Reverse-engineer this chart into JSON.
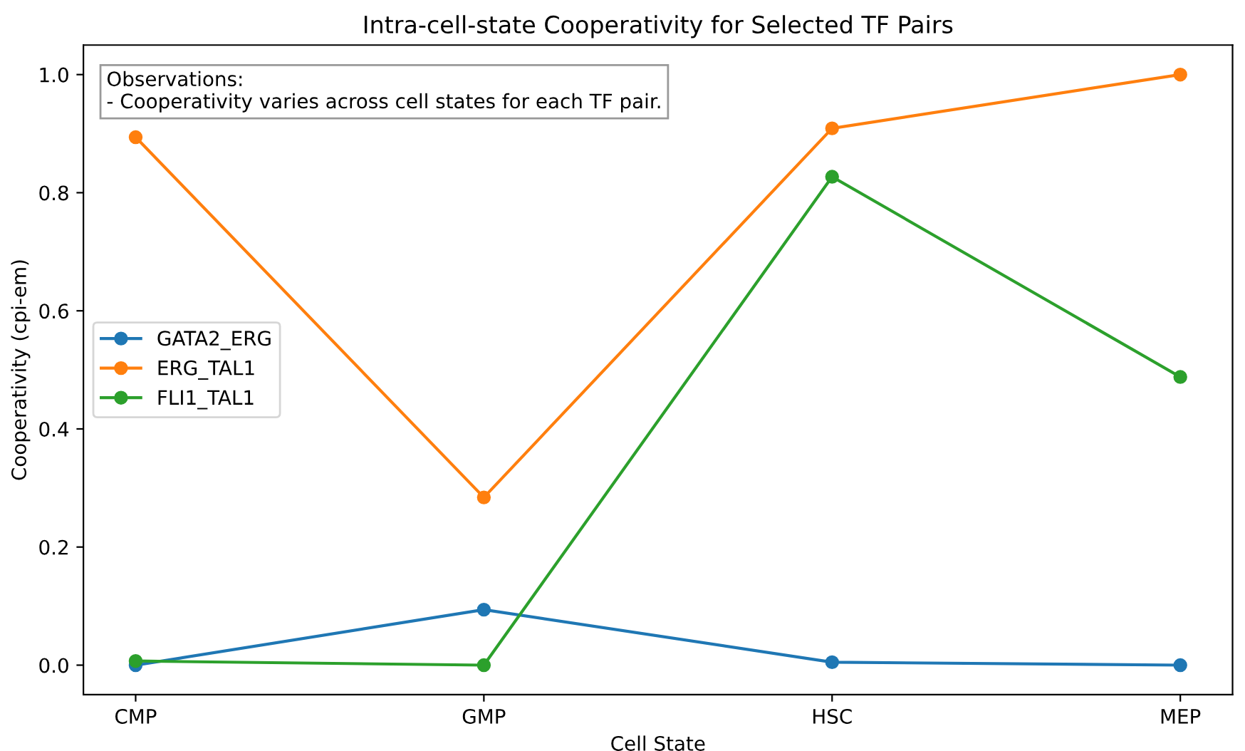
{
  "chart_data": {
    "type": "line",
    "title": "Intra-cell-state Cooperativity for Selected TF Pairs",
    "xlabel": "Cell State",
    "ylabel": "Cooperativity (cpi-em)",
    "categories": [
      "CMP",
      "GMP",
      "HSC",
      "MEP"
    ],
    "series": [
      {
        "name": "GATA2_ERG",
        "color": "#1f77b4",
        "values": [
          0.0,
          0.094,
          0.005,
          0.0
        ]
      },
      {
        "name": "ERG_TAL1",
        "color": "#ff7f0e",
        "values": [
          0.894,
          0.284,
          0.909,
          1.0
        ]
      },
      {
        "name": "FLI1_TAL1",
        "color": "#2ca02c",
        "values": [
          0.007,
          0.0,
          0.827,
          0.488
        ]
      }
    ],
    "ylim": [
      -0.05,
      1.05
    ],
    "yticks": [
      {
        "value": 0,
        "label": "0.0"
      },
      0.2,
      0.4,
      0.6,
      0.8,
      {
        "value": 1,
        "label": "1.0"
      }
    ],
    "annotations": [
      "Observations:\n- Cooperativity varies across cell states for each TF pair."
    ],
    "legend": "left",
    "marker": "circle",
    "line_style": "solid"
  }
}
